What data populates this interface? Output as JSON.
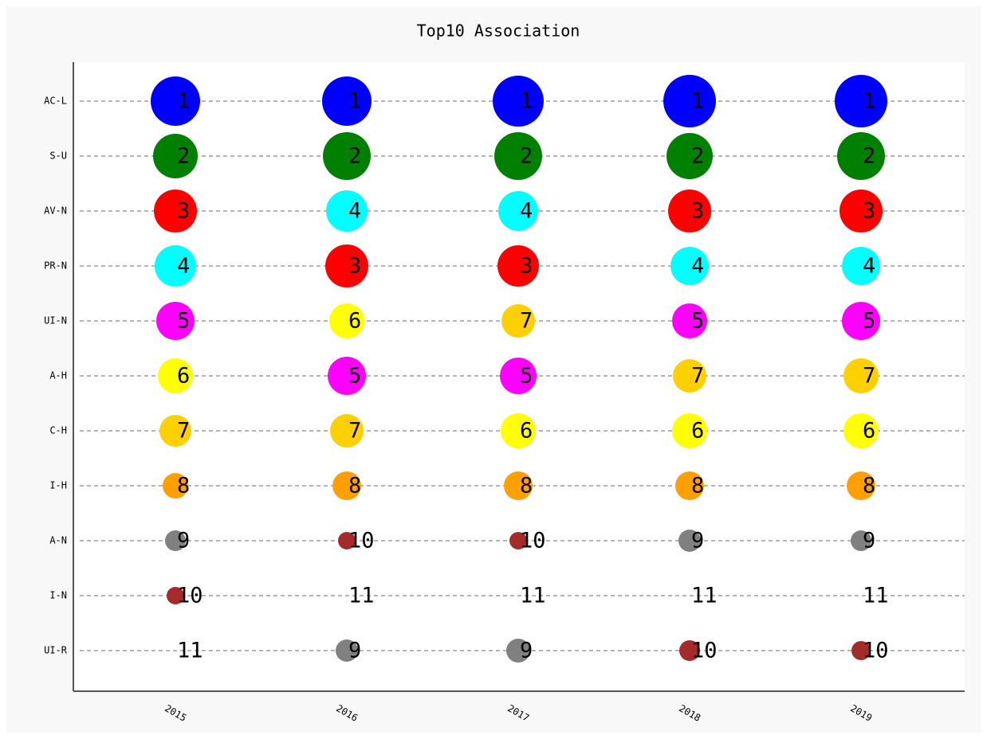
{
  "chart_data": {
    "type": "bubble",
    "title": "Top10 Association",
    "x": [
      "2015",
      "2016",
      "2017",
      "2018",
      "2019"
    ],
    "grid": true,
    "rank_colors": [
      "#0000ff",
      "#008000",
      "#ff0000",
      "#00ffff",
      "#ff00ff",
      "#ffff00",
      "#ffd000",
      "#ffa000",
      "#808080",
      "#a52a2a"
    ],
    "series": [
      {
        "name": "AC-L",
        "values": [
          1,
          1,
          1,
          1,
          1
        ],
        "sizes": [
          31,
          31,
          32,
          33,
          33
        ]
      },
      {
        "name": "S-U",
        "values": [
          2,
          2,
          2,
          2,
          2
        ],
        "sizes": [
          28,
          30,
          30,
          29,
          30
        ]
      },
      {
        "name": "AV-N",
        "values": [
          3,
          4,
          4,
          3,
          3
        ],
        "sizes": [
          27,
          26,
          25,
          27,
          27
        ]
      },
      {
        "name": "PR-N",
        "values": [
          4,
          3,
          3,
          4,
          4
        ],
        "sizes": [
          26,
          27,
          26,
          24,
          24
        ]
      },
      {
        "name": "UI-N",
        "values": [
          5,
          6,
          7,
          5,
          5
        ],
        "sizes": [
          24,
          22,
          21,
          22,
          24
        ]
      },
      {
        "name": "A-H",
        "values": [
          6,
          5,
          5,
          7,
          7
        ],
        "sizes": [
          22,
          24,
          23,
          21,
          22
        ]
      },
      {
        "name": "C-H",
        "values": [
          7,
          7,
          6,
          6,
          6
        ],
        "sizes": [
          20,
          21,
          22,
          22,
          22
        ]
      },
      {
        "name": "I-H",
        "values": [
          8,
          8,
          8,
          8,
          8
        ],
        "sizes": [
          16,
          18,
          18,
          18,
          18
        ]
      },
      {
        "name": "A-N",
        "values": [
          9,
          10,
          10,
          9,
          9
        ],
        "sizes": [
          13,
          11,
          11,
          14,
          13
        ]
      },
      {
        "name": "I-N",
        "values": [
          10,
          11,
          11,
          11,
          11
        ],
        "sizes": [
          11,
          0,
          0,
          0,
          0
        ]
      },
      {
        "name": "UI-R",
        "values": [
          11,
          9,
          9,
          10,
          10
        ],
        "sizes": [
          0,
          14,
          15,
          13,
          12
        ]
      }
    ]
  }
}
